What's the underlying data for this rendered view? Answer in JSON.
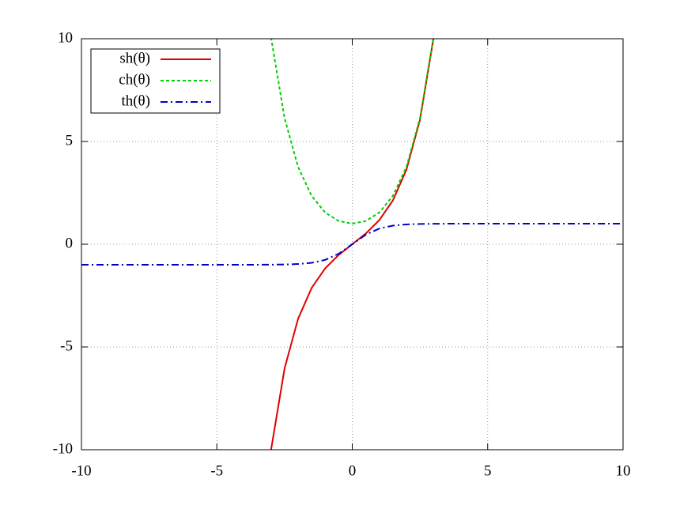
{
  "chart_data": {
    "type": "line",
    "x": [
      -10,
      -9.5,
      -9,
      -8.5,
      -8,
      -7.5,
      -7,
      -6.5,
      -6,
      -5.5,
      -5,
      -4.5,
      -4,
      -3.5,
      -3,
      -2.5,
      -2,
      -1.5,
      -1,
      -0.5,
      0,
      0.5,
      1,
      1.5,
      2,
      2.5,
      3,
      3.5,
      4,
      4.5,
      5,
      5.5,
      6,
      6.5,
      7,
      7.5,
      8,
      8.5,
      9,
      9.5,
      10
    ],
    "series": [
      {
        "name": "sh(θ)",
        "color": "#e00000",
        "dash": "none",
        "values": [
          null,
          null,
          null,
          null,
          null,
          null,
          null,
          null,
          null,
          null,
          null,
          null,
          null,
          null,
          -10.018,
          -6.05,
          -3.627,
          -2.129,
          -1.175,
          -0.521,
          0,
          0.521,
          1.175,
          2.129,
          3.627,
          6.05,
          10.018,
          null,
          null,
          null,
          null,
          null,
          null,
          null,
          null,
          null,
          null,
          null,
          null,
          null,
          null
        ]
      },
      {
        "name": "ch(θ)",
        "color": "#00d000",
        "dash": "4,3",
        "values": [
          null,
          null,
          null,
          null,
          null,
          null,
          null,
          null,
          null,
          null,
          null,
          null,
          null,
          null,
          10.068,
          6.132,
          3.762,
          2.352,
          1.543,
          1.128,
          1,
          1.128,
          1.543,
          2.352,
          3.762,
          6.132,
          10.068,
          null,
          null,
          null,
          null,
          null,
          null,
          null,
          null,
          null,
          null,
          null,
          null,
          null,
          null
        ]
      },
      {
        "name": "th(θ)",
        "color": "#0000d0",
        "dash": "9,4,2,4",
        "values": [
          -1,
          -1,
          -1,
          -1,
          -1,
          -1,
          -1,
          -1,
          -1,
          -1,
          -1,
          -1,
          -0.999,
          -0.998,
          -0.995,
          -0.987,
          -0.964,
          -0.905,
          -0.762,
          -0.462,
          0,
          0.462,
          0.762,
          0.905,
          0.964,
          0.987,
          0.995,
          0.998,
          0.999,
          1,
          1,
          1,
          1,
          1,
          1,
          1,
          1,
          1,
          1,
          1,
          1
        ]
      }
    ],
    "xlim": [
      -10,
      10
    ],
    "ylim": [
      -10,
      10
    ],
    "xticks": [
      -10,
      -5,
      0,
      5,
      10
    ],
    "yticks": [
      -10,
      -5,
      0,
      5,
      10
    ],
    "grid": true,
    "legend": "top-left"
  }
}
